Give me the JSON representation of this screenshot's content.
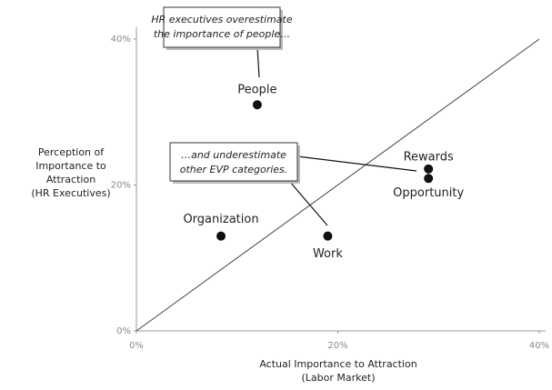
{
  "chart_data": {
    "type": "scatter",
    "x_label": [
      "Actual Importance to Attraction",
      "(Labor Market)"
    ],
    "y_label": [
      "Perception of",
      "Importance to",
      "Attraction",
      "(HR Executives)"
    ],
    "xlim": [
      0,
      40
    ],
    "ylim": [
      0,
      40
    ],
    "xticks": [
      {
        "value": 0,
        "label": "0%"
      },
      {
        "value": 20,
        "label": "20%"
      },
      {
        "value": 40,
        "label": "40%"
      }
    ],
    "yticks": [
      {
        "value": 0,
        "label": "0%"
      },
      {
        "value": 20,
        "label": "20%"
      },
      {
        "value": 40,
        "label": "40%"
      }
    ],
    "color": "#111111",
    "points": [
      {
        "label": "People",
        "x": 12,
        "y": 31
      },
      {
        "label": "Organization",
        "x": 8.4,
        "y": 13
      },
      {
        "label": "Work",
        "x": 19,
        "y": 13
      },
      {
        "label": "Rewards",
        "x": 29,
        "y": 22.2
      },
      {
        "label": "Opportunity",
        "x": 29,
        "y": 20.9
      }
    ],
    "annotations": [
      {
        "lines": [
          "HR executives overestimate",
          "the importance of people…"
        ]
      },
      {
        "lines": [
          "…and underestimate",
          "other EVP categories."
        ]
      }
    ]
  }
}
